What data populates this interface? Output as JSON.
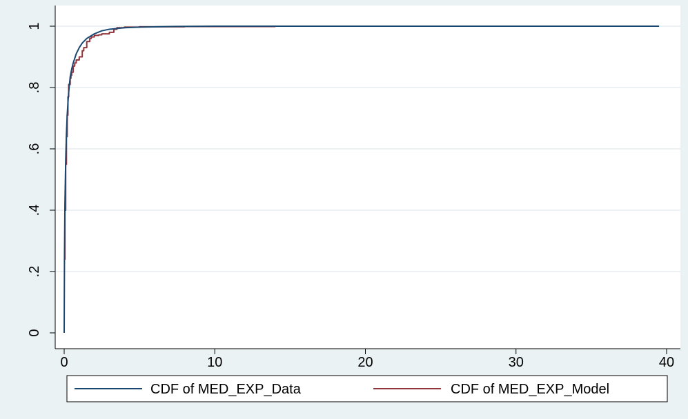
{
  "chart_data": {
    "type": "line",
    "title": "",
    "xlabel": "",
    "ylabel": "",
    "xlim": [
      0,
      40
    ],
    "ylim": [
      0,
      1
    ],
    "x_ticks": [
      0,
      10,
      20,
      30,
      40
    ],
    "x_tick_labels": [
      "0",
      "10",
      "20",
      "30",
      "40"
    ],
    "y_ticks": [
      0,
      0.2,
      0.4,
      0.6,
      0.8,
      1
    ],
    "y_tick_labels": [
      "0",
      ".2",
      ".4",
      ".6",
      ".8",
      "1"
    ],
    "grid": "horizontal",
    "legend_position": "bottom",
    "colors": {
      "page_background": "#eaf2f3",
      "plot_background": "#ffffff",
      "grid": "#e6eeef",
      "axis": "#000000"
    },
    "series": [
      {
        "name": "CDF of MED_EXP_Data",
        "color": "#1a476f",
        "step": false,
        "x": [
          0,
          0.02,
          0.05,
          0.1,
          0.15,
          0.2,
          0.25,
          0.3,
          0.4,
          0.5,
          0.6,
          0.8,
          1.0,
          1.2,
          1.5,
          2.0,
          2.5,
          3.0,
          4.0,
          5.0,
          7.0,
          10,
          15,
          20,
          30,
          39.5
        ],
        "y": [
          0,
          0.25,
          0.42,
          0.56,
          0.65,
          0.71,
          0.75,
          0.785,
          0.835,
          0.86,
          0.88,
          0.91,
          0.93,
          0.945,
          0.96,
          0.975,
          0.985,
          0.99,
          0.995,
          0.997,
          0.999,
          1.0,
          1.0,
          1.0,
          1.0,
          1.0
        ]
      },
      {
        "name": "CDF of MED_EXP_Model",
        "color": "#90353b",
        "step": true,
        "x": [
          0,
          0.05,
          0.1,
          0.15,
          0.2,
          0.25,
          0.3,
          0.4,
          0.45,
          0.5,
          0.6,
          0.7,
          0.8,
          1.0,
          1.2,
          1.3,
          1.5,
          1.7,
          1.8,
          2.0,
          2.3,
          2.5,
          3.0,
          3.3,
          3.5,
          4.0,
          5.0,
          8.0,
          14,
          35
        ],
        "y": [
          0.24,
          0.4,
          0.55,
          0.64,
          0.71,
          0.77,
          0.81,
          0.83,
          0.84,
          0.85,
          0.87,
          0.88,
          0.89,
          0.9,
          0.92,
          0.93,
          0.95,
          0.96,
          0.965,
          0.97,
          0.972,
          0.975,
          0.98,
          0.99,
          0.995,
          0.997,
          0.998,
          0.999,
          1.0,
          1.0
        ]
      }
    ]
  }
}
